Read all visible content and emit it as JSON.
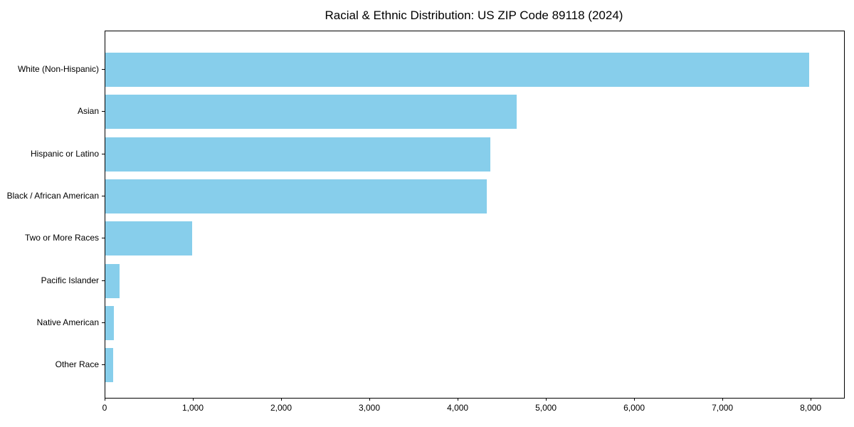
{
  "title": "Racial & Ethnic Distribution: US ZIP Code 89118 (2024)",
  "chart_data": {
    "type": "bar",
    "orientation": "horizontal",
    "title": "Racial & Ethnic Distribution: US ZIP Code 89118 (2024)",
    "categories": [
      "White (Non-Hispanic)",
      "Asian",
      "Hispanic or Latino",
      "Black / African American",
      "Two or More Races",
      "Pacific Islander",
      "Native American",
      "Other Race"
    ],
    "values": [
      7975,
      4660,
      4360,
      4320,
      980,
      160,
      100,
      85
    ],
    "xlabel": "",
    "ylabel": "",
    "xlim": [
      0,
      8370
    ],
    "x_ticks": [
      0,
      1000,
      2000,
      3000,
      4000,
      5000,
      6000,
      7000,
      8000
    ],
    "x_tick_labels": [
      "0",
      "1,000",
      "2,000",
      "3,000",
      "4,000",
      "5,000",
      "6,000",
      "7,000",
      "8,000"
    ],
    "bar_color": "#87CEEB",
    "grid": false,
    "legend": null,
    "frame": "full-box"
  }
}
